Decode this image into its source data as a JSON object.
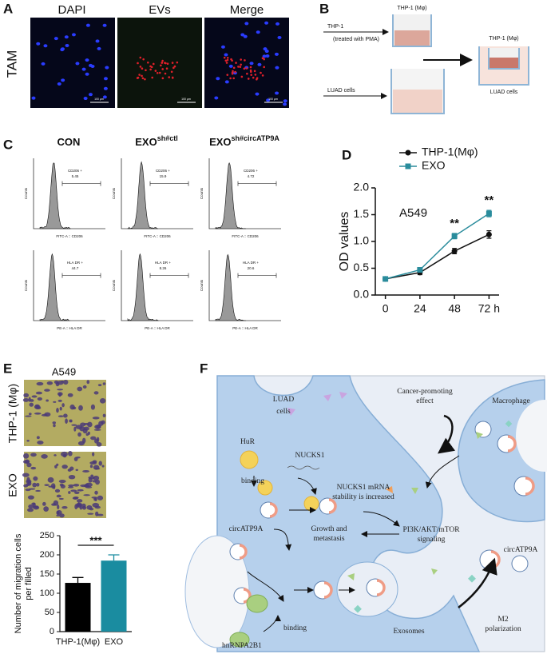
{
  "panel_A": {
    "label": "A",
    "columns": [
      "DAPI",
      "EVs",
      "Merge"
    ],
    "row_label": "TAM",
    "scale_bar": "100 μm"
  },
  "panel_B": {
    "label": "B",
    "thp1_treated": [
      "THP-1",
      "(treated with PMA)"
    ],
    "thp1_top": "THP-1 (Mφ)",
    "thp1_combined": "THP-1 (Mφ)",
    "luad_left": "LUAD cells",
    "luad_right": "LUAD cells"
  },
  "panel_C": {
    "label": "C",
    "columns": [
      {
        "base": "CON"
      },
      {
        "base": "EXO",
        "sup": "sh#ctl"
      },
      {
        "base": "EXO",
        "sup": "sh#circATP9A"
      }
    ],
    "y_label": "Counts",
    "rows": [
      {
        "x_label": "FITC-A :: CD206",
        "gate": "CD206 +",
        "values": [
          5.45,
          15.9,
          4.72
        ]
      },
      {
        "x_label": "PE-A :: HLA DR",
        "gate": "HLA DR +",
        "values": [
          44.7,
          8.26,
          20.6
        ]
      }
    ]
  },
  "panel_E": {
    "label": "E",
    "title": "A549",
    "rows": [
      "THP-1 (Mφ)",
      "EXO"
    ]
  },
  "panel_F": {
    "label": "F",
    "luad": [
      "LUAD",
      "cells"
    ],
    "macrophage": "Macrophage",
    "cancer_effect": [
      "Cancer-promoting",
      "effect"
    ],
    "hur": "HuR",
    "binding_1": "binding",
    "nucks1": "NUCKS1",
    "stability": [
      "NUCKS1 mRNA",
      "stability is increased"
    ],
    "circ_left": "circATP9A",
    "growth": [
      "Growth and",
      "metastasis"
    ],
    "signaling": [
      "PI3K/AKT/mTOR",
      "signaling"
    ],
    "circ_right": "circATP9A",
    "exosomes": "Exosomes",
    "m2": [
      "M2",
      "polarization"
    ],
    "hnrnp": "hnRNPA2B1",
    "binding_2": "binding"
  },
  "chart_data": [
    {
      "type": "line",
      "panel_label": "D",
      "annotation": "A549",
      "ylabel": "OD values",
      "x": [
        0,
        24,
        48,
        72
      ],
      "xlim": [
        -7,
        79
      ],
      "xticks": [
        0,
        24,
        48,
        {
          "value": 72,
          "label": "72 h"
        }
      ],
      "ylim": [
        0,
        2
      ],
      "yticks": [
        {
          "value": 0,
          "label": "0.0"
        },
        0.5,
        {
          "value": 1,
          "label": "1.0"
        },
        1.5,
        {
          "value": 2,
          "label": "2.0"
        }
      ],
      "legend": "top-left",
      "series": [
        {
          "name": "THP-1(Mφ)",
          "color": "#111111",
          "marker": "circle",
          "values": [
            0.3,
            0.42,
            0.82,
            1.13
          ],
          "errors": [
            0.03,
            0.04,
            0.05,
            0.07
          ]
        },
        {
          "name": "EXO",
          "color": "#2a8c9c",
          "marker": "square",
          "values": [
            0.3,
            0.47,
            1.1,
            1.52
          ],
          "errors": [
            0.03,
            0.03,
            0.05,
            0.06
          ]
        }
      ],
      "significance": [
        "**",
        "**"
      ]
    },
    {
      "type": "bar",
      "categories": [
        "THP-1(Mφ)",
        "EXO"
      ],
      "values": [
        127,
        185
      ],
      "errors": [
        14,
        15
      ],
      "colors": [
        "#000000",
        "#1a8ca0"
      ],
      "ylim": [
        0,
        250
      ],
      "yticks": [
        0,
        50,
        100,
        150,
        200,
        250
      ],
      "ylabel": [
        "Number of migration cells",
        "per filled"
      ],
      "significance": "***"
    }
  ]
}
